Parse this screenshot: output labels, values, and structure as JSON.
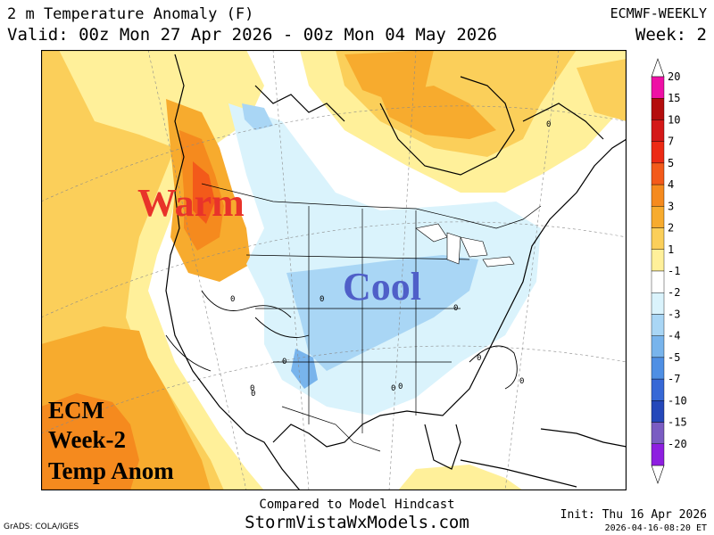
{
  "header": {
    "title": "2 m Temperature Anomaly (F)",
    "valid": "Valid: 00z Mon 27 Apr 2026 - 00z Mon 04 May 2026",
    "model": "ECMWF-WEEKLY",
    "week": "Week: 2"
  },
  "map": {
    "annotations": {
      "warm": "Warm",
      "cool": "Cool",
      "ecm_line1": "ECM",
      "ecm_line2": "Week-2",
      "ecm_line3": "Temp Anom"
    },
    "contour_labels": [
      "0",
      "0",
      "0",
      "0",
      "0",
      "0",
      "0",
      "0",
      "0",
      "0",
      "0"
    ],
    "colors": {
      "warm_text": "#e8332a",
      "cool_text": "#4f5fc8"
    }
  },
  "scale": {
    "labels": [
      "20",
      "15",
      "10",
      "7",
      "5",
      "4",
      "3",
      "2",
      "1",
      "-1",
      "-2",
      "-3",
      "-4",
      "-5",
      "-7",
      "-10",
      "-15",
      "-20"
    ],
    "colors": [
      "#ee10a5",
      "#b40d0d",
      "#d41818",
      "#ec2a14",
      "#f35a1a",
      "#f58a1e",
      "#f7ab2e",
      "#fbcf5a",
      "#fff09a",
      "#ffffff",
      "#daf3fc",
      "#a9d6f5",
      "#78b4ec",
      "#4f8fe4",
      "#3768d6",
      "#2548ba",
      "#7a5cc2",
      "#8e1fe0"
    ]
  },
  "footer": {
    "compared": "Compared to Model Hindcast",
    "site": "StormVistaWxModels.com",
    "grads": "GrADS: COLA/IGES",
    "init": "Init: Thu 16 Apr 2026",
    "stamp": "2026-04-16-08:20 ET"
  }
}
